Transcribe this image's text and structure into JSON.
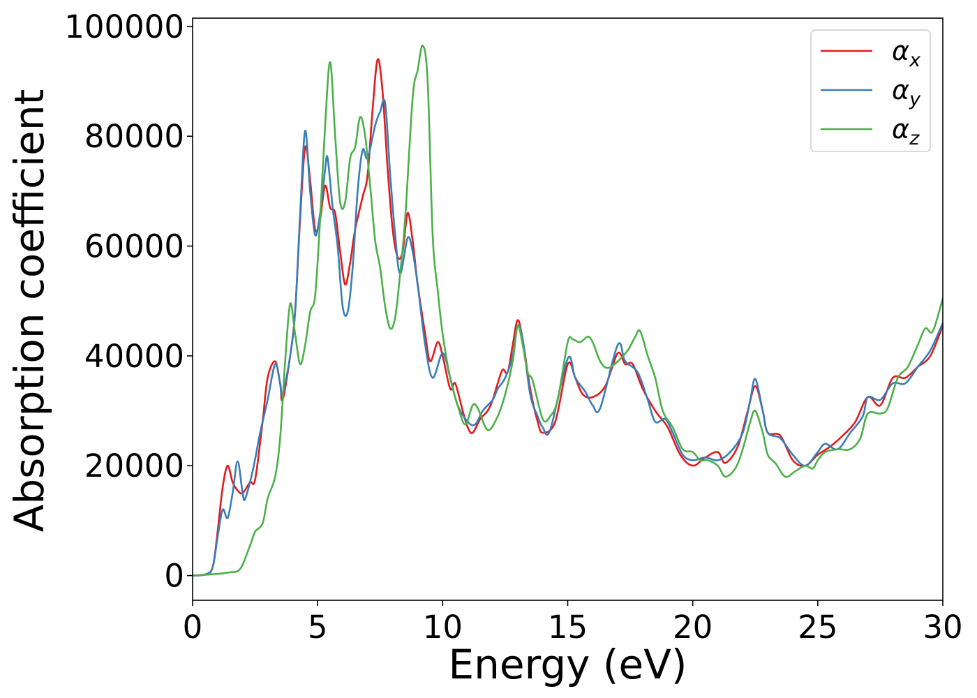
{
  "chart_data": {
    "type": "line",
    "xlabel": "Energy (eV)",
    "ylabel": "Absorption coefficient",
    "xlim": [
      0,
      30
    ],
    "ylim": [
      -4500,
      101500
    ],
    "xticks": [
      0,
      5,
      10,
      15,
      20,
      25,
      30
    ],
    "yticks": [
      0,
      20000,
      40000,
      60000,
      80000,
      100000
    ],
    "grid": false,
    "legend_position": "top-right",
    "series": [
      {
        "name": "α",
        "subscript": "x",
        "color": "#e41a1c",
        "points": [
          [
            0,
            0
          ],
          [
            0.5,
            200
          ],
          [
            0.8,
            1500
          ],
          [
            1.0,
            8000
          ],
          [
            1.2,
            16000
          ],
          [
            1.4,
            20000
          ],
          [
            1.6,
            17000
          ],
          [
            1.8,
            15500
          ],
          [
            2.0,
            15000
          ],
          [
            2.3,
            17000
          ],
          [
            2.5,
            17500
          ],
          [
            2.8,
            28000
          ],
          [
            3.0,
            36000
          ],
          [
            3.3,
            39000
          ],
          [
            3.5,
            35000
          ],
          [
            3.6,
            32000
          ],
          [
            3.9,
            40000
          ],
          [
            4.1,
            48000
          ],
          [
            4.3,
            65000
          ],
          [
            4.5,
            78000
          ],
          [
            4.7,
            72000
          ],
          [
            4.9,
            63000
          ],
          [
            5.1,
            65000
          ],
          [
            5.3,
            71000
          ],
          [
            5.5,
            67000
          ],
          [
            5.7,
            66000
          ],
          [
            5.9,
            59000
          ],
          [
            6.1,
            53000
          ],
          [
            6.3,
            57000
          ],
          [
            6.5,
            63000
          ],
          [
            6.8,
            69000
          ],
          [
            7.0,
            73000
          ],
          [
            7.2,
            85000
          ],
          [
            7.4,
            94000
          ],
          [
            7.6,
            88000
          ],
          [
            7.8,
            74000
          ],
          [
            8.0,
            63000
          ],
          [
            8.2,
            58000
          ],
          [
            8.4,
            59000
          ],
          [
            8.6,
            66000
          ],
          [
            8.8,
            61000
          ],
          [
            9.0,
            53000
          ],
          [
            9.3,
            44000
          ],
          [
            9.5,
            39000
          ],
          [
            9.8,
            42500
          ],
          [
            10.0,
            40000
          ],
          [
            10.3,
            34000
          ],
          [
            10.5,
            35000
          ],
          [
            10.8,
            30000
          ],
          [
            11.0,
            27000
          ],
          [
            11.2,
            26000
          ],
          [
            11.5,
            28500
          ],
          [
            11.8,
            30000
          ],
          [
            12.0,
            32000
          ],
          [
            12.2,
            35000
          ],
          [
            12.4,
            37500
          ],
          [
            12.6,
            37000
          ],
          [
            12.8,
            42000
          ],
          [
            13.0,
            46500
          ],
          [
            13.2,
            43000
          ],
          [
            13.5,
            34000
          ],
          [
            13.8,
            28000
          ],
          [
            14.0,
            26000
          ],
          [
            14.5,
            28000
          ],
          [
            15.0,
            38500
          ],
          [
            15.3,
            36000
          ],
          [
            15.6,
            33000
          ],
          [
            16.0,
            32500
          ],
          [
            16.5,
            34500
          ],
          [
            17.0,
            40500
          ],
          [
            17.3,
            38500
          ],
          [
            17.6,
            38500
          ],
          [
            18.0,
            34000
          ],
          [
            18.5,
            30000
          ],
          [
            19.0,
            27000
          ],
          [
            19.5,
            22000
          ],
          [
            20.0,
            20000
          ],
          [
            20.5,
            21500
          ],
          [
            21.0,
            22500
          ],
          [
            21.3,
            20500
          ],
          [
            21.8,
            23500
          ],
          [
            22.2,
            30000
          ],
          [
            22.5,
            34500
          ],
          [
            22.8,
            30000
          ],
          [
            23.0,
            26000
          ],
          [
            23.5,
            25500
          ],
          [
            24.0,
            21000
          ],
          [
            24.5,
            20000
          ],
          [
            25.0,
            22000
          ],
          [
            25.5,
            23500
          ],
          [
            26.0,
            25500
          ],
          [
            26.5,
            28000
          ],
          [
            27.0,
            32500
          ],
          [
            27.5,
            31000
          ],
          [
            28.0,
            36000
          ],
          [
            28.5,
            36000
          ],
          [
            29.0,
            38000
          ],
          [
            29.5,
            40000
          ],
          [
            30.0,
            45500
          ]
        ]
      },
      {
        "name": "α",
        "subscript": "y",
        "color": "#377eb8",
        "points": [
          [
            0,
            0
          ],
          [
            0.5,
            200
          ],
          [
            0.8,
            1500
          ],
          [
            1.0,
            7000
          ],
          [
            1.2,
            12000
          ],
          [
            1.4,
            10500
          ],
          [
            1.6,
            15000
          ],
          [
            1.8,
            20800
          ],
          [
            2.0,
            15000
          ],
          [
            2.1,
            14000
          ],
          [
            2.4,
            19000
          ],
          [
            2.7,
            26000
          ],
          [
            3.0,
            32000
          ],
          [
            3.3,
            38500
          ],
          [
            3.5,
            35000
          ],
          [
            3.6,
            33000
          ],
          [
            3.9,
            40000
          ],
          [
            4.1,
            48000
          ],
          [
            4.3,
            66000
          ],
          [
            4.5,
            81000
          ],
          [
            4.7,
            70000
          ],
          [
            4.9,
            62000
          ],
          [
            5.1,
            66000
          ],
          [
            5.3,
            74000
          ],
          [
            5.4,
            76000
          ],
          [
            5.6,
            67000
          ],
          [
            5.8,
            60000
          ],
          [
            6.0,
            49000
          ],
          [
            6.2,
            48000
          ],
          [
            6.4,
            56000
          ],
          [
            6.6,
            70000
          ],
          [
            6.8,
            77500
          ],
          [
            7.0,
            76000
          ],
          [
            7.3,
            82000
          ],
          [
            7.5,
            84500
          ],
          [
            7.7,
            86000
          ],
          [
            7.9,
            73000
          ],
          [
            8.1,
            62000
          ],
          [
            8.3,
            55000
          ],
          [
            8.6,
            61500
          ],
          [
            8.8,
            59000
          ],
          [
            9.0,
            53000
          ],
          [
            9.3,
            42000
          ],
          [
            9.6,
            36000
          ],
          [
            10.0,
            40500
          ],
          [
            10.3,
            36000
          ],
          [
            10.6,
            31000
          ],
          [
            11.0,
            28000
          ],
          [
            11.3,
            27500
          ],
          [
            11.6,
            30000
          ],
          [
            12.0,
            32000
          ],
          [
            12.2,
            34000
          ],
          [
            12.5,
            36000
          ],
          [
            12.8,
            40000
          ],
          [
            13.0,
            45500
          ],
          [
            13.2,
            43000
          ],
          [
            13.5,
            33000
          ],
          [
            13.8,
            29000
          ],
          [
            14.0,
            27000
          ],
          [
            14.3,
            26500
          ],
          [
            15.0,
            39500
          ],
          [
            15.3,
            36000
          ],
          [
            15.7,
            33500
          ],
          [
            16.0,
            31000
          ],
          [
            16.3,
            30500
          ],
          [
            17.0,
            42000
          ],
          [
            17.3,
            39000
          ],
          [
            17.8,
            37000
          ],
          [
            18.2,
            32000
          ],
          [
            18.5,
            28000
          ],
          [
            18.9,
            28500
          ],
          [
            19.2,
            26000
          ],
          [
            19.6,
            22000
          ],
          [
            20.0,
            21000
          ],
          [
            20.5,
            21500
          ],
          [
            21.0,
            21000
          ],
          [
            21.5,
            22500
          ],
          [
            22.0,
            26000
          ],
          [
            22.3,
            32000
          ],
          [
            22.5,
            35800
          ],
          [
            22.8,
            30000
          ],
          [
            23.0,
            26000
          ],
          [
            23.5,
            25000
          ],
          [
            24.0,
            22000
          ],
          [
            24.5,
            20000
          ],
          [
            25.0,
            22500
          ],
          [
            25.3,
            24000
          ],
          [
            25.8,
            23000
          ],
          [
            26.3,
            26000
          ],
          [
            26.8,
            29000
          ],
          [
            27.0,
            32500
          ],
          [
            27.5,
            32000
          ],
          [
            28.0,
            35000
          ],
          [
            28.5,
            35000
          ],
          [
            29.0,
            38000
          ],
          [
            29.5,
            41000
          ],
          [
            30.0,
            46000
          ]
        ]
      },
      {
        "name": "α",
        "subscript": "z",
        "color": "#4daf4a",
        "points": [
          [
            0,
            0
          ],
          [
            1.0,
            300
          ],
          [
            1.5,
            600
          ],
          [
            1.8,
            800
          ],
          [
            2.0,
            2000
          ],
          [
            2.3,
            5500
          ],
          [
            2.5,
            8000
          ],
          [
            2.8,
            9500
          ],
          [
            3.0,
            14000
          ],
          [
            3.3,
            18000
          ],
          [
            3.5,
            25000
          ],
          [
            3.7,
            39000
          ],
          [
            3.9,
            49500
          ],
          [
            4.1,
            44000
          ],
          [
            4.3,
            38500
          ],
          [
            4.5,
            42000
          ],
          [
            4.7,
            48000
          ],
          [
            4.9,
            51000
          ],
          [
            5.1,
            65000
          ],
          [
            5.3,
            82000
          ],
          [
            5.5,
            93500
          ],
          [
            5.7,
            80000
          ],
          [
            5.9,
            68000
          ],
          [
            6.1,
            68000
          ],
          [
            6.3,
            76000
          ],
          [
            6.5,
            78000
          ],
          [
            6.7,
            83500
          ],
          [
            6.9,
            80000
          ],
          [
            7.1,
            71000
          ],
          [
            7.3,
            61000
          ],
          [
            7.5,
            56000
          ],
          [
            7.7,
            49000
          ],
          [
            7.9,
            45000
          ],
          [
            8.1,
            47000
          ],
          [
            8.3,
            55000
          ],
          [
            8.5,
            65000
          ],
          [
            8.8,
            87000
          ],
          [
            9.0,
            92000
          ],
          [
            9.2,
            96500
          ],
          [
            9.4,
            90000
          ],
          [
            9.6,
            62000
          ],
          [
            9.8,
            52000
          ],
          [
            10.0,
            44000
          ],
          [
            10.3,
            36000
          ],
          [
            10.6,
            31000
          ],
          [
            10.9,
            27500
          ],
          [
            11.2,
            31000
          ],
          [
            11.4,
            30500
          ],
          [
            11.8,
            26500
          ],
          [
            12.2,
            29000
          ],
          [
            12.5,
            33000
          ],
          [
            12.8,
            39000
          ],
          [
            13.0,
            45500
          ],
          [
            13.2,
            42000
          ],
          [
            13.4,
            37000
          ],
          [
            13.6,
            35500
          ],
          [
            14.0,
            28500
          ],
          [
            14.3,
            29000
          ],
          [
            14.6,
            32000
          ],
          [
            15.0,
            42500
          ],
          [
            15.2,
            43000
          ],
          [
            15.5,
            42500
          ],
          [
            15.8,
            43500
          ],
          [
            16.0,
            42500
          ],
          [
            16.3,
            39000
          ],
          [
            16.6,
            37800
          ],
          [
            17.0,
            39000
          ],
          [
            17.4,
            41000
          ],
          [
            17.7,
            43500
          ],
          [
            17.9,
            44500
          ],
          [
            18.2,
            40000
          ],
          [
            18.5,
            36000
          ],
          [
            18.8,
            30000
          ],
          [
            19.2,
            27000
          ],
          [
            19.6,
            23000
          ],
          [
            20.0,
            22500
          ],
          [
            20.3,
            21000
          ],
          [
            20.6,
            21000
          ],
          [
            21.0,
            20000
          ],
          [
            21.3,
            18000
          ],
          [
            21.7,
            19500
          ],
          [
            22.0,
            23000
          ],
          [
            22.3,
            28000
          ],
          [
            22.5,
            30000
          ],
          [
            22.8,
            26000
          ],
          [
            23.0,
            22000
          ],
          [
            23.3,
            20500
          ],
          [
            23.7,
            18000
          ],
          [
            24.1,
            19000
          ],
          [
            24.5,
            20000
          ],
          [
            24.8,
            19500
          ],
          [
            25.0,
            21000
          ],
          [
            25.3,
            22500
          ],
          [
            25.8,
            23000
          ],
          [
            26.3,
            23000
          ],
          [
            26.7,
            25000
          ],
          [
            27.0,
            29500
          ],
          [
            27.5,
            29500
          ],
          [
            27.8,
            30500
          ],
          [
            28.2,
            36000
          ],
          [
            28.6,
            38000
          ],
          [
            29.0,
            42000
          ],
          [
            29.3,
            45000
          ],
          [
            29.6,
            44500
          ],
          [
            30.0,
            50500
          ]
        ]
      }
    ]
  }
}
